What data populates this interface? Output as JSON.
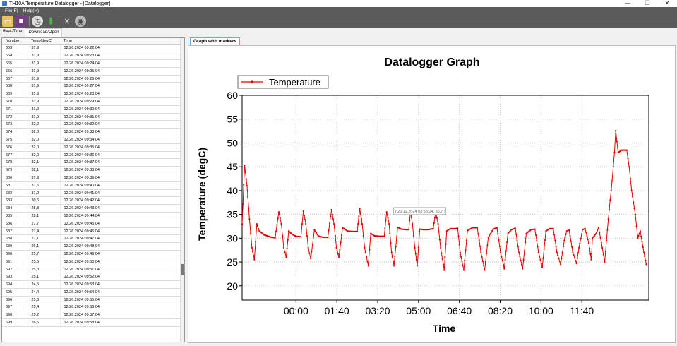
{
  "window": {
    "title": "TH10A Temperature Datalogger - [Datalogger]",
    "minimize": "—",
    "maximize": "❐",
    "close": "✕"
  },
  "menu": {
    "file": "File(F)",
    "help": "Help(H)"
  },
  "toolbar": {
    "icons": [
      "folder-open-icon",
      "save-icon",
      "clock-icon",
      "download-icon",
      "tools-icon",
      "database-icon"
    ]
  },
  "tabs": {
    "realtime": "Real-Time",
    "download": "Download/Open"
  },
  "table": {
    "headers": [
      "Number",
      "Temp(degC)",
      "Time"
    ],
    "rows": [
      [
        "663",
        "31,9",
        "12.26.2024 09:22:04"
      ],
      [
        "664",
        "31,9",
        "12.26.2024 09:23:04"
      ],
      [
        "665",
        "31,9",
        "12.26.2024 09:24:04"
      ],
      [
        "666",
        "31,9",
        "12.26.2024 09:25:04"
      ],
      [
        "667",
        "31,9",
        "12.26.2024 09:26:04"
      ],
      [
        "668",
        "31,9",
        "12.26.2024 09:27:04"
      ],
      [
        "669",
        "31,9",
        "12.26.2024 09:28:04"
      ],
      [
        "670",
        "31,9",
        "12.26.2024 09:29:04"
      ],
      [
        "671",
        "31,9",
        "12.26.2024 09:30:04"
      ],
      [
        "672",
        "31,9",
        "12.26.2024 09:31:04"
      ],
      [
        "673",
        "32,0",
        "12.26.2024 09:32:04"
      ],
      [
        "674",
        "32,0",
        "12.26.2024 09:33:04"
      ],
      [
        "675",
        "32,0",
        "12.26.2024 09:34:04"
      ],
      [
        "676",
        "32,0",
        "12.26.2024 09:35:04"
      ],
      [
        "677",
        "32,0",
        "12.26.2024 09:36:04"
      ],
      [
        "678",
        "32,1",
        "12.26.2024 09:37:04"
      ],
      [
        "679",
        "32,1",
        "12.26.2024 09:38:04"
      ],
      [
        "680",
        "31,9",
        "12.26.2024 09:39:04"
      ],
      [
        "681",
        "31,6",
        "12.26.2024 09:40:04"
      ],
      [
        "682",
        "31,2",
        "12.26.2024 09:41:04"
      ],
      [
        "683",
        "30,6",
        "12.26.2024 09:42:04"
      ],
      [
        "684",
        "28,8",
        "12.26.2024 09:43:04"
      ],
      [
        "685",
        "28,1",
        "12.26.2024 09:44:04"
      ],
      [
        "686",
        "27,7",
        "12.26.2024 09:45:04"
      ],
      [
        "687",
        "27,4",
        "12.26.2024 09:46:04"
      ],
      [
        "688",
        "27,1",
        "12.26.2024 09:47:04"
      ],
      [
        "689",
        "26,1",
        "12.26.2024 09:48:04"
      ],
      [
        "690",
        "25,7",
        "12.26.2024 09:49:04"
      ],
      [
        "691",
        "25,5",
        "12.26.2024 09:50:04"
      ],
      [
        "692",
        "25,3",
        "12.26.2024 09:51:04"
      ],
      [
        "693",
        "25,1",
        "12.26.2024 09:52:04"
      ],
      [
        "694",
        "24,5",
        "12.26.2024 09:53:04"
      ],
      [
        "695",
        "24,4",
        "12.26.2024 09:54:04"
      ],
      [
        "696",
        "25,3",
        "12.26.2024 09:55:04"
      ],
      [
        "697",
        "25,4",
        "12.26.2024 09:56:04"
      ],
      [
        "698",
        "25,2",
        "12.26.2024 09:57:04"
      ],
      [
        "699",
        "26,6",
        "12.26.2024 09:58:04"
      ]
    ]
  },
  "graph_tab": "Graph with markers",
  "chart_data": {
    "type": "line",
    "title": "Datalogger Graph",
    "xlabel": "Time",
    "ylabel": "Temperature (degC)",
    "series_name": "Temperature",
    "legend_position": "top-left",
    "grid": true,
    "color": "#e00000",
    "ylim": [
      17,
      60
    ],
    "yticks": [
      20,
      25,
      30,
      35,
      40,
      45,
      50,
      55,
      60
    ],
    "xlim_hours": [
      -2.2,
      14.4
    ],
    "xtick_labels": [
      "00:00",
      "01:40",
      "03:20",
      "05:00",
      "06:40",
      "08:20",
      "10:00",
      "11:40"
    ],
    "xticks_hours": [
      0,
      1.6667,
      3.3333,
      5,
      6.6667,
      8.3333,
      10,
      11.6667
    ],
    "tooltip": "( 26.12.2024 03:56:04, 35,7 )",
    "tooltip_point": {
      "hour": 3.93,
      "temp": 35.7
    },
    "points": [
      [
        -2.2,
        33
      ],
      [
        -2.1,
        45.3
      ],
      [
        -2.0,
        41
      ],
      [
        -1.9,
        34
      ],
      [
        -1.8,
        28
      ],
      [
        -1.7,
        25.5
      ],
      [
        -1.6,
        33
      ],
      [
        -1.5,
        31.5
      ],
      [
        -1.3,
        30.7
      ],
      [
        -1.0,
        30.2
      ],
      [
        -0.85,
        30.1
      ],
      [
        -0.7,
        35.5
      ],
      [
        -0.6,
        33
      ],
      [
        -0.5,
        28
      ],
      [
        -0.4,
        26
      ],
      [
        -0.3,
        31.5
      ],
      [
        -0.15,
        30.8
      ],
      [
        0.0,
        30.4
      ],
      [
        0.2,
        30.3
      ],
      [
        0.3,
        35.7
      ],
      [
        0.4,
        33
      ],
      [
        0.5,
        28
      ],
      [
        0.6,
        25.7
      ],
      [
        0.75,
        31.8
      ],
      [
        0.9,
        30.5
      ],
      [
        1.1,
        30.2
      ],
      [
        1.3,
        30.2
      ],
      [
        1.45,
        36
      ],
      [
        1.55,
        33
      ],
      [
        1.65,
        28
      ],
      [
        1.75,
        26
      ],
      [
        1.9,
        32.2
      ],
      [
        2.1,
        31.5
      ],
      [
        2.3,
        31.4
      ],
      [
        2.5,
        31.4
      ],
      [
        2.6,
        36.2
      ],
      [
        2.7,
        33
      ],
      [
        2.8,
        28
      ],
      [
        2.95,
        24.2
      ],
      [
        3.05,
        31
      ],
      [
        3.2,
        30.5
      ],
      [
        3.4,
        30.4
      ],
      [
        3.6,
        30.4
      ],
      [
        3.7,
        35.5
      ],
      [
        3.8,
        33
      ],
      [
        3.9,
        27
      ],
      [
        4.0,
        24.2
      ],
      [
        4.15,
        32.3
      ],
      [
        4.3,
        31.9
      ],
      [
        4.5,
        31.8
      ],
      [
        4.6,
        31.8
      ],
      [
        4.68,
        35.7
      ],
      [
        4.75,
        33
      ],
      [
        4.85,
        28
      ],
      [
        4.95,
        24.2
      ],
      [
        5.05,
        31.9
      ],
      [
        5.2,
        31.8
      ],
      [
        5.4,
        31.8
      ],
      [
        5.6,
        32
      ],
      [
        5.7,
        35.5
      ],
      [
        5.8,
        33
      ],
      [
        5.9,
        28
      ],
      [
        6.05,
        23.3
      ],
      [
        6.15,
        31.5
      ],
      [
        6.3,
        32
      ],
      [
        6.5,
        32
      ],
      [
        6.6,
        32.1
      ],
      [
        6.7,
        27
      ],
      [
        6.85,
        23.3
      ],
      [
        7.0,
        31.6
      ],
      [
        7.2,
        32.2
      ],
      [
        7.4,
        32.2
      ],
      [
        7.55,
        27
      ],
      [
        7.7,
        23.3
      ],
      [
        7.85,
        30.2
      ],
      [
        8.05,
        31.9
      ],
      [
        8.2,
        32.2
      ],
      [
        8.35,
        27
      ],
      [
        8.5,
        23.6
      ],
      [
        8.65,
        31
      ],
      [
        8.8,
        31.8
      ],
      [
        8.95,
        32.1
      ],
      [
        9.1,
        27
      ],
      [
        9.25,
        23.6
      ],
      [
        9.4,
        31
      ],
      [
        9.6,
        31.8
      ],
      [
        9.75,
        31.9
      ],
      [
        9.9,
        27
      ],
      [
        10.05,
        23.9
      ],
      [
        10.2,
        31.5
      ],
      [
        10.35,
        32
      ],
      [
        10.5,
        32
      ],
      [
        10.65,
        27
      ],
      [
        10.8,
        24.5
      ],
      [
        10.95,
        29.5
      ],
      [
        11.05,
        31.5
      ],
      [
        11.15,
        31.7
      ],
      [
        11.3,
        27
      ],
      [
        11.45,
        24.7
      ],
      [
        11.55,
        28
      ],
      [
        11.7,
        31.8
      ],
      [
        11.8,
        32
      ],
      [
        11.95,
        29
      ],
      [
        12.05,
        25.5
      ],
      [
        12.1,
        30
      ],
      [
        12.25,
        31
      ],
      [
        12.35,
        32.2
      ],
      [
        12.5,
        28
      ],
      [
        12.6,
        25
      ],
      [
        12.75,
        34
      ],
      [
        12.9,
        42
      ],
      [
        13.0,
        48
      ],
      [
        13.05,
        52.6
      ],
      [
        13.15,
        48
      ],
      [
        13.3,
        48.5
      ],
      [
        13.5,
        48.5
      ],
      [
        13.6,
        45
      ],
      [
        13.7,
        40
      ],
      [
        13.85,
        35
      ],
      [
        13.95,
        30
      ],
      [
        14.05,
        31.5
      ],
      [
        14.2,
        27
      ],
      [
        14.3,
        24.5
      ]
    ]
  }
}
